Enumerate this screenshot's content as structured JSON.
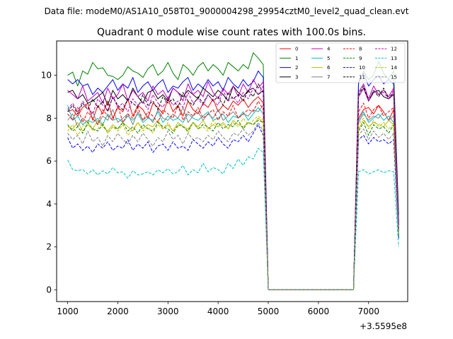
{
  "figure": {
    "suptitle": "Data file: modeM0/AS1A10_058T01_9000004298_29954cztM0_level2_quad_clean.evt"
  },
  "chart_data": {
    "type": "line",
    "title": "Quadrant 0 module wise count rates with 100.0s bins.",
    "xlabel": "",
    "ylabel": "",
    "x_offset_label": "+3.5595e8",
    "xlim": [
      780,
      7780
    ],
    "ylim": [
      -0.55,
      11.6
    ],
    "xticks": [
      1000,
      2000,
      3000,
      4000,
      5000,
      6000,
      7000
    ],
    "yticks": [
      0,
      2,
      4,
      6,
      8,
      10
    ],
    "legend": {
      "placement": "top-right",
      "columns": 4
    },
    "x_segments": [
      {
        "start": 1000,
        "end": 4900,
        "step": 100
      },
      {
        "start": 5000,
        "end": 6700,
        "step": 100
      },
      {
        "start": 6800,
        "end": 7600,
        "step": 100
      }
    ],
    "series": [
      {
        "name": "0",
        "color": "#ff0000",
        "dash": "solid",
        "v1": [
          8.3,
          8.4,
          8.1,
          8.5,
          8.7,
          7.9,
          8.6,
          8.2,
          8.8,
          8.0,
          8.5,
          8.3,
          8.9,
          8.1,
          8.6,
          8.4,
          8.0,
          8.7,
          8.5,
          8.2,
          8.9,
          8.3,
          8.6,
          8.1,
          8.8,
          8.4,
          8.2,
          8.7,
          8.5,
          8.9,
          8.3,
          8.6,
          8.4,
          8.8,
          8.6,
          8.9,
          8.5,
          8.8,
          9.0,
          8.7
        ],
        "v3": [
          8.0,
          8.4,
          8.5,
          8.2,
          8.6,
          8.3,
          7.9,
          8.4,
          2.8
        ]
      },
      {
        "name": "1",
        "color": "#008000",
        "dash": "solid",
        "v1": [
          10.0,
          10.15,
          9.5,
          10.2,
          10.05,
          10.6,
          10.3,
          10.35,
          10.0,
          9.95,
          9.8,
          10.0,
          10.4,
          10.2,
          10.1,
          9.9,
          10.3,
          10.5,
          10.0,
          10.2,
          10.6,
          10.1,
          9.8,
          10.5,
          10.3,
          10.0,
          10.4,
          10.6,
          10.2,
          10.5,
          10.3,
          10.0,
          10.6,
          10.4,
          10.2,
          10.5,
          10.3,
          11.05,
          10.8,
          10.5
        ],
        "v3": [
          9.6,
          10.2,
          9.8,
          10.0,
          10.65,
          10.1,
          9.8,
          10.2,
          3.5
        ]
      },
      {
        "name": "2",
        "color": "#0000ff",
        "dash": "solid",
        "v1": [
          9.8,
          9.6,
          9.8,
          9.5,
          9.6,
          9.1,
          9.4,
          9.2,
          9.5,
          9.8,
          9.3,
          9.6,
          9.4,
          9.9,
          9.2,
          9.5,
          9.7,
          9.3,
          9.6,
          9.8,
          9.2,
          9.5,
          9.4,
          9.7,
          9.9,
          9.3,
          9.6,
          9.4,
          9.8,
          9.5,
          9.7,
          9.3,
          9.9,
          9.6,
          9.4,
          9.8,
          9.5,
          9.7,
          10.2,
          9.9
        ],
        "v3": [
          9.7,
          10.1,
          9.5,
          9.8,
          10.0,
          9.6,
          9.8,
          9.6,
          3.2
        ]
      },
      {
        "name": "3",
        "color": "#000000",
        "dash": "solid",
        "v1": [
          9.2,
          9.3,
          8.9,
          9.1,
          8.7,
          8.8,
          9.0,
          9.2,
          8.6,
          9.3,
          8.9,
          9.1,
          8.8,
          9.4,
          9.0,
          8.7,
          9.2,
          9.3,
          8.9,
          9.1,
          8.8,
          9.4,
          9.2,
          9.0,
          9.3,
          9.1,
          8.9,
          9.4,
          9.2,
          9.0,
          9.3,
          9.1,
          8.8,
          9.5,
          9.2,
          9.0,
          9.3,
          9.4,
          9.1,
          9.3
        ],
        "v3": [
          9.0,
          9.4,
          8.8,
          9.2,
          9.3,
          9.0,
          8.9,
          9.1,
          3.0
        ]
      },
      {
        "name": "4",
        "color": "#bf00bf",
        "dash": "solid",
        "v1": [
          9.3,
          9.1,
          8.9,
          9.5,
          8.8,
          9.0,
          9.2,
          8.7,
          9.4,
          8.9,
          9.1,
          9.6,
          8.8,
          9.3,
          9.0,
          9.2,
          8.8,
          9.5,
          9.1,
          9.3,
          8.9,
          9.4,
          9.2,
          8.8,
          9.6,
          9.1,
          9.3,
          9.0,
          9.7,
          9.2,
          8.9,
          9.4,
          9.1,
          9.5,
          9.0,
          9.6,
          9.2,
          9.8,
          9.4,
          9.7
        ],
        "v3": [
          9.2,
          9.6,
          8.9,
          9.5,
          9.1,
          9.3,
          9.0,
          9.4,
          3.1
        ]
      },
      {
        "name": "5",
        "color": "#00bfbf",
        "dash": "solid",
        "v1": [
          8.6,
          7.9,
          8.1,
          7.7,
          7.9,
          7.8,
          8.0,
          7.7,
          8.2,
          7.9,
          8.0,
          7.8,
          8.1,
          7.9,
          8.2,
          7.8,
          8.0,
          7.9,
          8.3,
          7.8,
          8.1,
          7.9,
          8.0,
          7.8,
          8.2,
          8.0,
          7.9,
          8.1,
          8.3,
          7.9,
          8.0,
          8.2,
          7.8,
          8.1,
          8.0,
          8.3,
          7.9,
          8.2,
          8.5,
          8.2
        ],
        "v3": [
          7.9,
          8.3,
          7.8,
          8.0,
          8.2,
          7.9,
          8.1,
          7.8,
          2.6
        ]
      },
      {
        "name": "6",
        "color": "#bfbf00",
        "dash": "solid",
        "v1": [
          7.6,
          7.5,
          7.8,
          7.4,
          7.7,
          7.5,
          7.9,
          7.6,
          7.4,
          7.7,
          7.5,
          7.8,
          7.6,
          7.4,
          7.8,
          7.5,
          7.7,
          7.6,
          7.9,
          7.5,
          7.7,
          7.4,
          7.8,
          7.6,
          7.5,
          7.8,
          7.6,
          7.9,
          7.5,
          7.7,
          7.6,
          7.8,
          7.5,
          7.9,
          7.7,
          7.6,
          7.8,
          7.7,
          8.0,
          7.8
        ],
        "v3": [
          7.5,
          7.9,
          7.6,
          7.8,
          7.7,
          7.6,
          7.9,
          7.7,
          2.7
        ]
      },
      {
        "name": "7",
        "color": "#808080",
        "dash": "solid",
        "v1": [
          7.9,
          8.2,
          7.6,
          8.0,
          7.8,
          8.3,
          7.7,
          8.1,
          7.9,
          8.4,
          7.8,
          8.0,
          8.2,
          7.7,
          8.3,
          7.9,
          8.1,
          7.8,
          8.4,
          8.0,
          7.9,
          8.2,
          8.0,
          8.5,
          7.8,
          8.1,
          8.3,
          7.9,
          8.2,
          8.0,
          8.4,
          7.9,
          8.1,
          8.3,
          8.0,
          8.2,
          8.1,
          8.4,
          8.3,
          8.6
        ],
        "v3": [
          7.8,
          8.2,
          7.9,
          8.1,
          8.0,
          8.3,
          7.9,
          8.1,
          2.9
        ]
      },
      {
        "name": "8",
        "color": "#ff0000",
        "dash": "dashed",
        "v1": [
          8.2,
          7.9,
          8.5,
          7.8,
          8.3,
          8.0,
          7.7,
          8.4,
          8.1,
          7.9,
          8.6,
          7.8,
          8.2,
          8.0,
          8.5,
          7.9,
          8.3,
          8.1,
          7.8,
          8.4,
          8.2,
          8.0,
          8.6,
          7.9,
          8.3,
          8.1,
          8.5,
          8.0,
          8.2,
          8.4,
          7.9,
          8.3,
          8.1,
          8.6,
          8.0,
          8.2,
          8.4,
          8.3,
          8.8,
          8.4
        ],
        "v3": [
          8.3,
          8.7,
          8.0,
          8.4,
          8.6,
          8.1,
          8.3,
          8.5,
          2.8
        ]
      },
      {
        "name": "9",
        "color": "#008000",
        "dash": "dashed",
        "v1": [
          7.7,
          7.4,
          7.6,
          7.3,
          7.8,
          7.5,
          7.4,
          7.7,
          7.3,
          7.6,
          7.5,
          7.8,
          7.4,
          7.6,
          7.3,
          7.7,
          7.5,
          7.4,
          7.8,
          7.6,
          7.5,
          7.3,
          7.7,
          7.6,
          7.4,
          7.8,
          7.5,
          7.7,
          7.6,
          7.4,
          7.8,
          7.5,
          7.7,
          7.6,
          7.9,
          7.5,
          7.8,
          7.7,
          7.9,
          7.8
        ],
        "v3": [
          7.4,
          7.8,
          7.2,
          7.7,
          7.5,
          7.6,
          7.3,
          7.7,
          2.5
        ]
      },
      {
        "name": "10",
        "color": "#0000ff",
        "dash": "dashed",
        "v1": [
          7.1,
          6.6,
          6.8,
          6.5,
          6.7,
          6.4,
          6.8,
          6.6,
          6.9,
          6.5,
          6.7,
          6.6,
          7.0,
          6.5,
          6.8,
          6.6,
          6.9,
          6.4,
          6.7,
          6.8,
          6.5,
          6.9,
          6.6,
          6.7,
          6.5,
          7.0,
          6.8,
          6.6,
          6.9,
          6.7,
          7.1,
          6.8,
          6.6,
          7.0,
          6.9,
          7.2,
          6.9,
          7.3,
          7.7,
          7.2
        ],
        "v3": [
          7.0,
          7.2,
          6.8,
          7.1,
          6.9,
          7.0,
          6.8,
          7.0,
          2.4
        ]
      },
      {
        "name": "11",
        "color": "#000000",
        "dash": "dashed",
        "v1": [
          8.3,
          8.6,
          8.2,
          8.7,
          8.4,
          8.9,
          8.5,
          8.8,
          8.3,
          9.0,
          8.6,
          8.4,
          8.9,
          8.7,
          8.5,
          9.1,
          8.6,
          8.8,
          8.4,
          9.0,
          8.7,
          8.9,
          8.5,
          9.2,
          8.8,
          8.6,
          9.0,
          8.7,
          9.1,
          8.8,
          9.0,
          8.6,
          9.2,
          8.9,
          9.1,
          8.8,
          9.3,
          9.0,
          9.6,
          9.2
        ],
        "v3": [
          9.1,
          9.5,
          8.8,
          9.3,
          9.0,
          9.4,
          8.9,
          9.2,
          3.0
        ]
      },
      {
        "name": "12",
        "color": "#bf00bf",
        "dash": "dashed",
        "v1": [
          8.4,
          8.7,
          8.3,
          8.8,
          8.5,
          8.2,
          8.9,
          8.6,
          8.4,
          9.0,
          8.5,
          8.7,
          8.3,
          8.9,
          8.6,
          8.8,
          8.4,
          9.1,
          8.7,
          8.5,
          9.0,
          8.6,
          8.8,
          8.5,
          9.2,
          8.7,
          8.9,
          8.6,
          9.1,
          8.8,
          8.6,
          9.3,
          8.8,
          9.0,
          8.7,
          9.2,
          8.9,
          9.4,
          9.1,
          9.5
        ],
        "v3": [
          9.0,
          9.4,
          8.8,
          9.3,
          9.1,
          9.2,
          8.9,
          9.3,
          2.9
        ]
      },
      {
        "name": "13",
        "color": "#00bfbf",
        "dash": "dashed",
        "v1": [
          6.05,
          5.6,
          5.55,
          5.6,
          5.4,
          5.6,
          5.35,
          5.55,
          5.4,
          5.7,
          5.45,
          5.5,
          5.2,
          5.55,
          5.35,
          5.4,
          5.5,
          5.35,
          5.6,
          5.45,
          5.65,
          5.4,
          5.5,
          5.8,
          5.35,
          5.6,
          5.45,
          5.9,
          5.5,
          5.7,
          5.6,
          5.4,
          5.9,
          5.65,
          6.1,
          5.8,
          6.2,
          6.1,
          6.6,
          6.4
        ],
        "v3": [
          5.5,
          5.6,
          5.4,
          5.5,
          5.6,
          5.45,
          5.55,
          5.5,
          2.0
        ]
      },
      {
        "name": "14",
        "color": "#bfbf00",
        "dash": "dashed",
        "v1": [
          7.4,
          7.7,
          7.2,
          7.6,
          7.9,
          7.4,
          7.5,
          7.8,
          7.3,
          7.6,
          7.4,
          7.7,
          7.2,
          7.5,
          7.8,
          7.4,
          7.6,
          7.3,
          7.7,
          7.5,
          7.8,
          7.4,
          7.6,
          7.7,
          7.3,
          7.8,
          7.5,
          7.6,
          7.4,
          7.9,
          7.6,
          7.7,
          7.5,
          7.8,
          7.6,
          8.0,
          7.7,
          7.9,
          8.1,
          7.9
        ],
        "v3": [
          7.7,
          8.0,
          7.5,
          7.9,
          7.6,
          7.8,
          7.5,
          7.7,
          2.6
        ]
      },
      {
        "name": "15",
        "color": "#808080",
        "dash": "dashed",
        "v1": [
          7.3,
          7.0,
          7.2,
          6.8,
          7.4,
          6.9,
          7.1,
          6.7,
          7.2,
          6.9,
          7.3,
          7.0,
          6.8,
          7.2,
          6.9,
          7.3,
          7.0,
          6.7,
          7.1,
          6.9,
          7.4,
          7.0,
          7.2,
          6.8,
          7.3,
          7.0,
          7.1,
          6.9,
          7.2,
          7.0,
          7.4,
          7.1,
          6.9,
          7.3,
          7.2,
          7.5,
          7.2,
          7.4,
          7.8,
          7.4
        ],
        "v3": [
          7.2,
          7.5,
          7.0,
          7.4,
          7.1,
          7.3,
          7.0,
          7.3,
          2.7
        ]
      }
    ]
  }
}
